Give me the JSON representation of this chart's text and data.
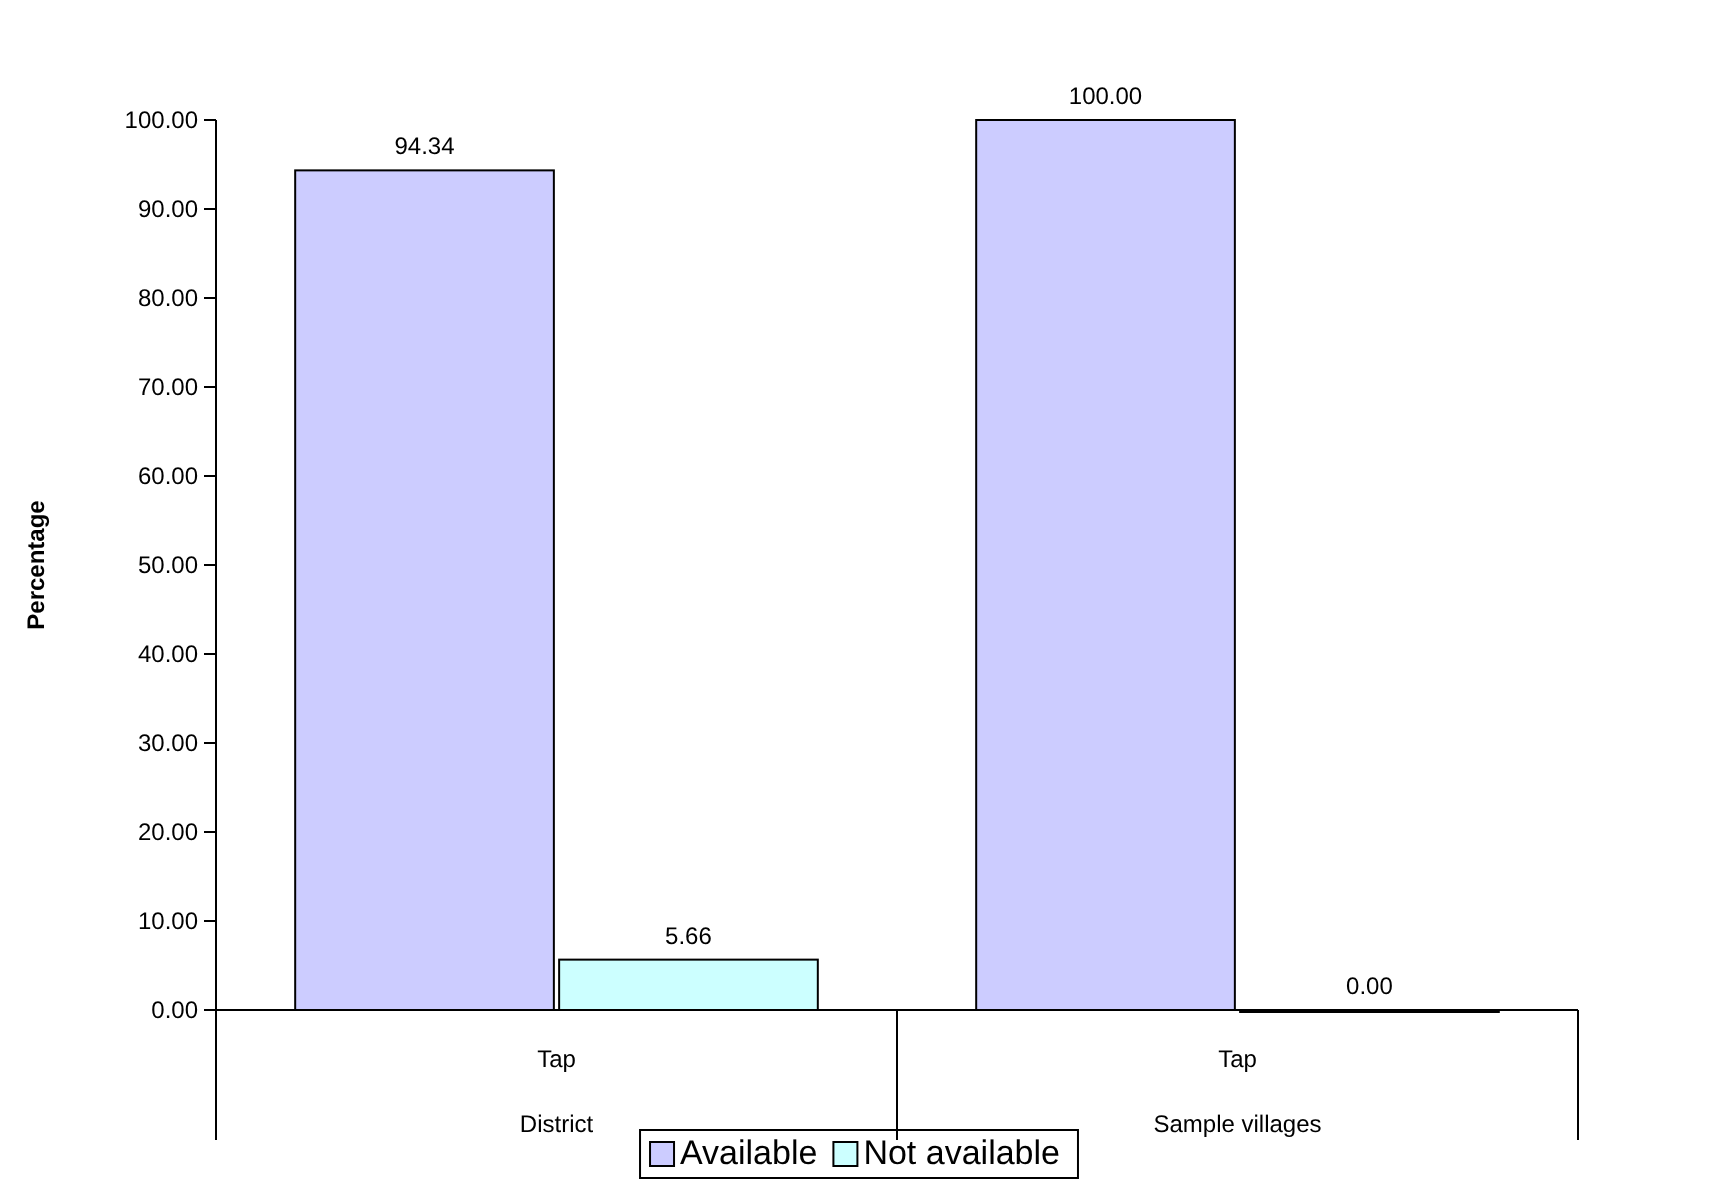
{
  "chart_data": {
    "type": "bar",
    "ylabel": "Percentage",
    "categories": [
      "Tap",
      "Tap"
    ],
    "annotations": [
      "District",
      "Sample villages"
    ],
    "series": [
      {
        "name": "Available",
        "color": "#ccccff",
        "values": [
          94.34,
          100
        ],
        "value_labels": [
          "94.34",
          "100.00"
        ]
      },
      {
        "name": "Not available",
        "color": "#ccffff",
        "values": [
          5.66,
          0
        ],
        "value_labels": [
          "5.66",
          "0.00"
        ]
      }
    ],
    "ylim": [
      0,
      100
    ],
    "yticks": [
      {
        "value": 0,
        "label": "0.00"
      },
      {
        "value": 10,
        "label": "10.00"
      },
      {
        "value": 20,
        "label": "20.00"
      },
      {
        "value": 30,
        "label": "30.00"
      },
      {
        "value": 40,
        "label": "40.00"
      },
      {
        "value": 50,
        "label": "50.00"
      },
      {
        "value": 60,
        "label": "60.00"
      },
      {
        "value": 70,
        "label": "70.00"
      },
      {
        "value": 80,
        "label": "80.00"
      },
      {
        "value": 90,
        "label": "90.00"
      },
      {
        "value": 100,
        "label": "100.00"
      }
    ],
    "grid": false,
    "legend": "bottom"
  }
}
